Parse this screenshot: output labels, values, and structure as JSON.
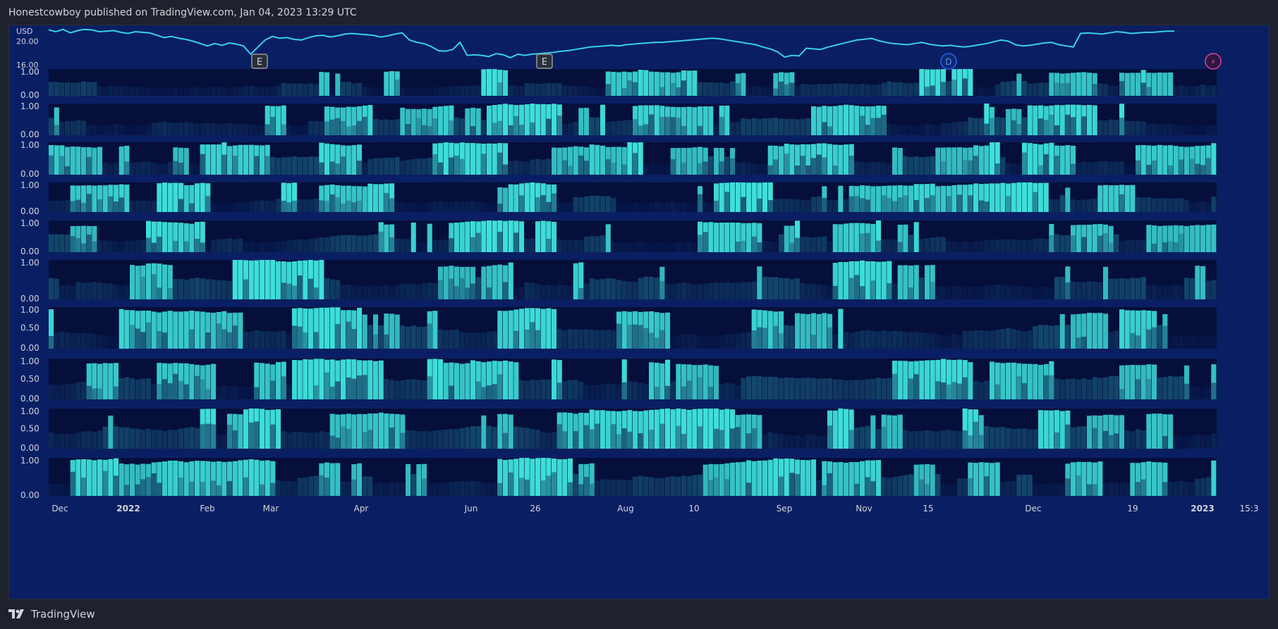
{
  "header": {
    "text": "Honestcowboy published on TradingView.com, Jan 04, 2023 13:29 UTC"
  },
  "footer": {
    "brand": "TradingView"
  },
  "colors": {
    "background": "#1e222d",
    "pane": "#0a1f63",
    "price_line": "#38d0e6",
    "heat_high": "#3ee0da",
    "heat_low": "#061548"
  },
  "chart_data": {
    "type": "heatmap",
    "currency_label": "USD",
    "price_axis": {
      "ticks": [
        20.0,
        16.0
      ],
      "tick_labels": [
        "20.00",
        "16.00"
      ]
    },
    "price_series": [
      21.9,
      21.6,
      22.0,
      21.4,
      21.8,
      22.0,
      21.9,
      21.6,
      21.7,
      21.8,
      21.5,
      21.3,
      21.6,
      21.5,
      21.4,
      21.0,
      20.6,
      20.8,
      20.5,
      20.3,
      20.0,
      19.6,
      19.2,
      19.6,
      19.3,
      19.7,
      19.5,
      19.2,
      17.8,
      19.0,
      20.2,
      20.8,
      20.5,
      20.6,
      20.3,
      20.2,
      20.6,
      20.9,
      21.0,
      20.7,
      20.9,
      21.2,
      21.3,
      21.2,
      21.1,
      21.0,
      20.7,
      20.9,
      21.2,
      21.4,
      20.2,
      19.8,
      19.6,
      19.1,
      18.4,
      18.3,
      18.6,
      19.8,
      17.6,
      17.7,
      17.6,
      17.4,
      17.9,
      17.7,
      17.2,
      17.8,
      17.6,
      17.8,
      17.9,
      18.0,
      18.1,
      18.3,
      18.4,
      18.6,
      18.8,
      19.0,
      19.1,
      19.2,
      19.3,
      19.2,
      19.4,
      19.5,
      19.6,
      19.7,
      19.8,
      19.8,
      19.9,
      20.0,
      20.1,
      20.2,
      20.3,
      20.4,
      20.5,
      20.4,
      20.2,
      20.0,
      19.8,
      19.6,
      19.4,
      19.0,
      18.7,
      18.2,
      17.3,
      17.6,
      17.5,
      18.8,
      18.7,
      18.6,
      19.0,
      19.3,
      19.6,
      19.9,
      20.2,
      20.3,
      20.5,
      20.1,
      19.8,
      19.6,
      19.5,
      19.4,
      19.6,
      19.8,
      19.5,
      19.3,
      19.2,
      19.3,
      19.1,
      19.0,
      19.2,
      19.4,
      19.6,
      19.9,
      20.2,
      20.0,
      19.4,
      19.2,
      19.3,
      19.5,
      19.7,
      19.8,
      19.4,
      19.2,
      19.0,
      21.3,
      21.4,
      21.3,
      21.2,
      21.4,
      21.6,
      21.5,
      21.3,
      21.4,
      21.5,
      21.5,
      21.6,
      21.7,
      21.7
    ],
    "pane_ticks": [
      [
        "1.00",
        "0.00"
      ],
      [
        "1.00",
        "0.00"
      ],
      [
        "1.00",
        "0.00"
      ],
      [
        "1.00",
        "0.00"
      ],
      [
        "1.00",
        "0.00"
      ],
      [
        "1.00",
        "0.00"
      ],
      [
        "1.00",
        "0.50",
        "0.00"
      ],
      [
        "1.00",
        "0.50",
        "0.00"
      ],
      [
        "1.00",
        "0.50",
        "0.00"
      ],
      [
        "1.00",
        "0.00"
      ]
    ],
    "x_tick_labels": [
      "Dec",
      "2022",
      "Feb",
      "Mar",
      "Apr",
      "Jun",
      "26",
      "Aug",
      "10",
      "Sep",
      "Nov",
      "15",
      "Dec",
      "19",
      "2023",
      "15:3"
    ],
    "x_tick_bold": [
      false,
      true,
      false,
      false,
      false,
      false,
      false,
      false,
      false,
      false,
      false,
      false,
      false,
      false,
      true,
      false
    ],
    "events": [
      {
        "label": "E",
        "type": "earnings"
      },
      {
        "label": "E",
        "type": "earnings"
      },
      {
        "label": "D",
        "type": "dividend"
      },
      {
        "label": "⚡",
        "type": "split"
      }
    ],
    "heatmap_panes": 10,
    "grid": false
  }
}
